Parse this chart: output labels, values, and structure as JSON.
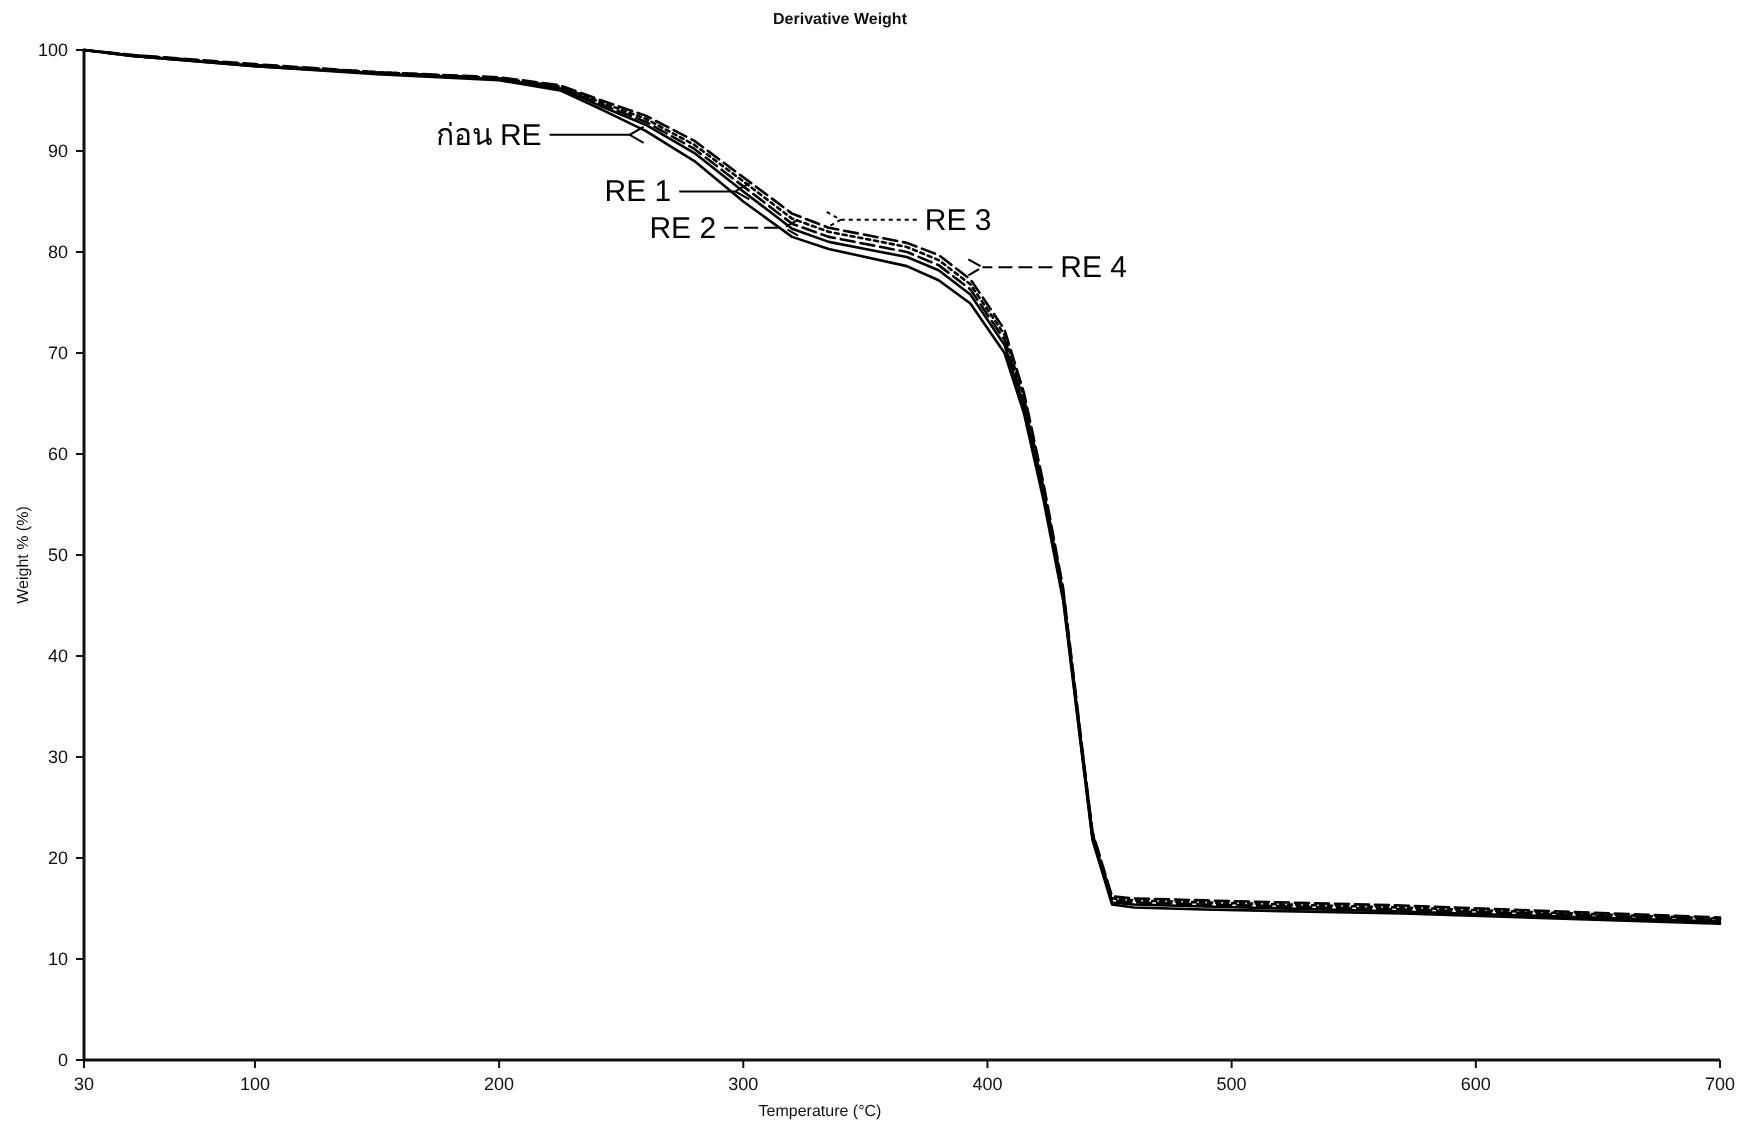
{
  "chart_data": {
    "type": "line",
    "title": "Derivative Weight",
    "xlabel": "Temperature (°C)",
    "ylabel": "Weight % (%)",
    "legend": "top",
    "xlim": [
      30,
      700
    ],
    "ylim": [
      0,
      100
    ],
    "xticks": [
      30,
      100,
      200,
      300,
      400,
      500,
      600,
      700
    ],
    "yticks": [
      0,
      10,
      20,
      30,
      40,
      50,
      60,
      70,
      80,
      90,
      100
    ],
    "x": [
      30,
      50,
      100,
      150,
      200,
      225,
      242,
      260,
      280,
      300,
      320,
      335,
      350,
      367,
      380,
      393,
      407,
      415,
      423,
      431,
      439,
      443,
      451,
      460,
      489,
      570,
      700
    ],
    "series": [
      {
        "name": "ก่อน RE",
        "color": "#000000",
        "line_style": "solid",
        "values": [
          100,
          99.4,
          98.4,
          97.6,
          97.0,
          96.0,
          94.1,
          92.0,
          89.0,
          85.0,
          81.5,
          80.3,
          79.5,
          78.6,
          77.2,
          74.9,
          70.0,
          64.0,
          55.4,
          45.5,
          29.7,
          21.8,
          15.4,
          15.1,
          14.9,
          14.5,
          13.5
        ]
      },
      {
        "name": "RE 1",
        "color": "#000000",
        "line_style": "solid",
        "values": [
          100,
          99.4,
          98.4,
          97.7,
          97.1,
          96.2,
          94.4,
          92.6,
          89.8,
          86.0,
          82.3,
          81.0,
          80.3,
          79.5,
          78.2,
          75.8,
          70.8,
          64.6,
          55.8,
          45.8,
          29.9,
          22.0,
          15.6,
          15.4,
          15.2,
          14.7,
          13.7
        ]
      },
      {
        "name": "RE 2",
        "color": "#000000",
        "line_style": "dashed",
        "values": [
          100,
          99.4,
          98.5,
          97.7,
          97.1,
          96.3,
          94.6,
          92.9,
          90.2,
          86.5,
          82.8,
          81.5,
          80.8,
          80.0,
          78.7,
          76.3,
          71.3,
          65.0,
          56.2,
          46.1,
          30.1,
          22.2,
          15.8,
          15.6,
          15.4,
          14.9,
          13.9
        ]
      },
      {
        "name": "RE 3",
        "color": "#000000",
        "line_style": "dotted",
        "values": [
          100,
          99.5,
          98.5,
          97.8,
          97.2,
          96.4,
          94.8,
          93.2,
          90.6,
          87.0,
          83.3,
          82.0,
          81.3,
          80.5,
          79.2,
          76.8,
          71.8,
          65.5,
          56.6,
          46.4,
          30.3,
          22.4,
          16.0,
          15.8,
          15.6,
          15.1,
          14.0
        ]
      },
      {
        "name": "RE 4",
        "color": "#000000",
        "line_style": "dashed",
        "values": [
          100,
          99.5,
          98.6,
          97.8,
          97.3,
          96.5,
          95.0,
          93.5,
          91.0,
          87.4,
          83.8,
          82.4,
          81.7,
          80.9,
          79.7,
          77.3,
          72.3,
          66.0,
          57.0,
          46.7,
          30.5,
          22.6,
          16.2,
          16.0,
          15.8,
          15.3,
          14.1
        ]
      }
    ]
  }
}
